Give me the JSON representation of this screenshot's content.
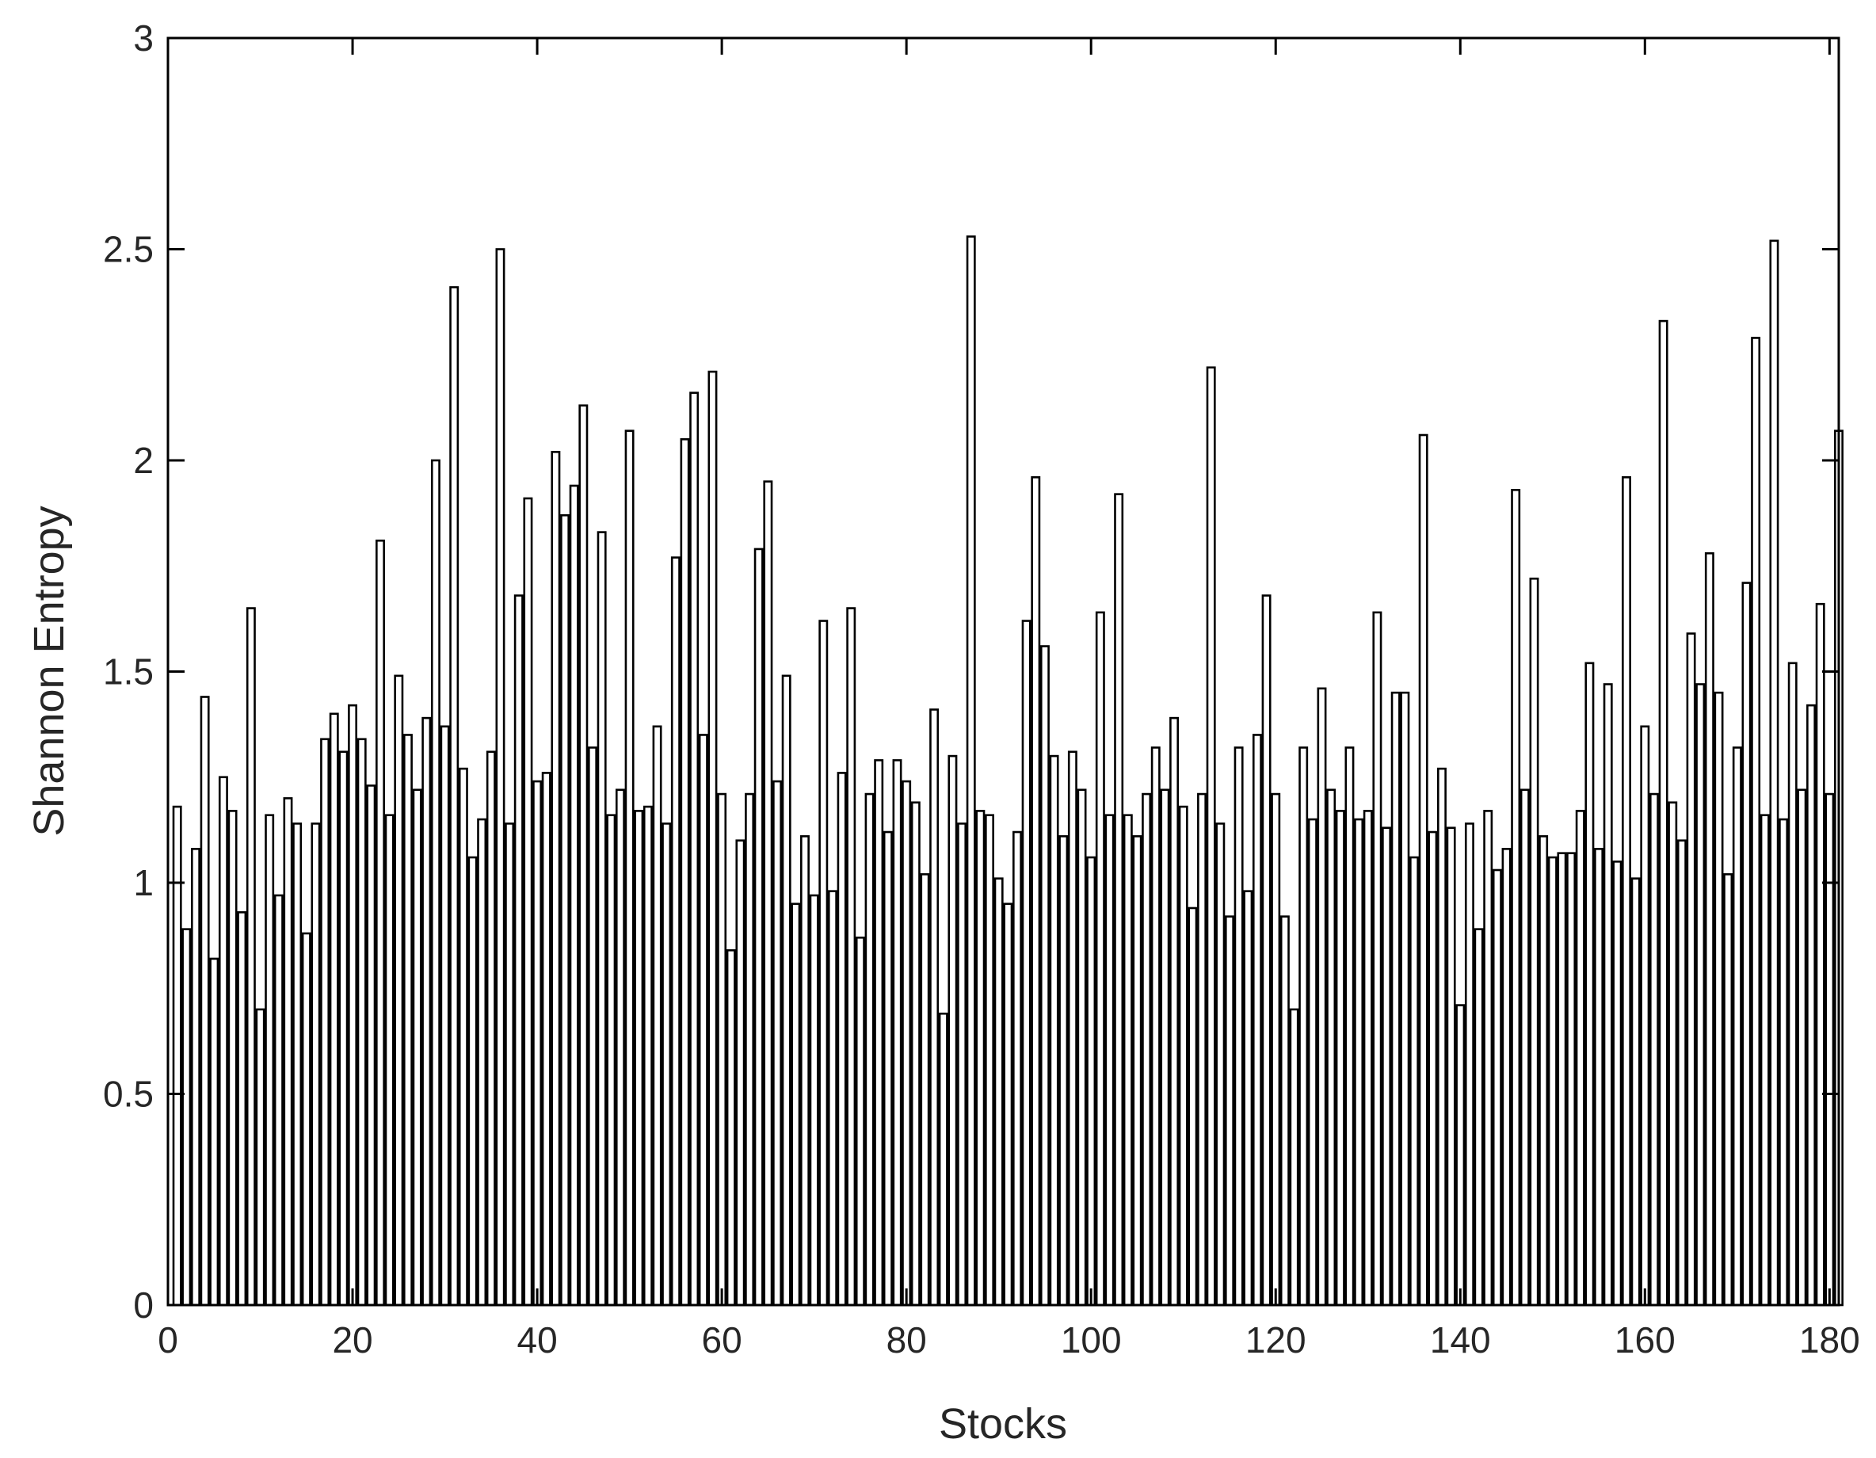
{
  "chart_data": {
    "type": "bar",
    "title": "",
    "xlabel": "Stocks",
    "ylabel": "Shannon Entropy",
    "xlim": [
      0,
      181
    ],
    "ylim": [
      0,
      3
    ],
    "xticks": [
      0,
      20,
      40,
      60,
      80,
      100,
      120,
      140,
      160,
      180
    ],
    "yticks": [
      0,
      0.5,
      1,
      1.5,
      2,
      2.5,
      3
    ],
    "ytick_labels": [
      "0",
      "0.5",
      "1",
      "1.5",
      "2",
      "2.5",
      "3"
    ],
    "grid": false,
    "box": true,
    "bar_fill": "#ffffff",
    "bar_edge": "#000000",
    "x": [
      1,
      2,
      3,
      4,
      5,
      6,
      7,
      8,
      9,
      10,
      11,
      12,
      13,
      14,
      15,
      16,
      17,
      18,
      19,
      20,
      21,
      22,
      23,
      24,
      25,
      26,
      27,
      28,
      29,
      30,
      31,
      32,
      33,
      34,
      35,
      36,
      37,
      38,
      39,
      40,
      41,
      42,
      43,
      44,
      45,
      46,
      47,
      48,
      49,
      50,
      51,
      52,
      53,
      54,
      55,
      56,
      57,
      58,
      59,
      60,
      61,
      62,
      63,
      64,
      65,
      66,
      67,
      68,
      69,
      70,
      71,
      72,
      73,
      74,
      75,
      76,
      77,
      78,
      79,
      80,
      81,
      82,
      83,
      84,
      85,
      86,
      87,
      88,
      89,
      90,
      91,
      92,
      93,
      94,
      95,
      96,
      97,
      98,
      99,
      100,
      101,
      102,
      103,
      104,
      105,
      106,
      107,
      108,
      109,
      110,
      111,
      112,
      113,
      114,
      115,
      116,
      117,
      118,
      119,
      120,
      121,
      122,
      123,
      124,
      125,
      126,
      127,
      128,
      129,
      130,
      131,
      132,
      133,
      134,
      135,
      136,
      137,
      138,
      139,
      140,
      141,
      142,
      143,
      144,
      145,
      146,
      147,
      148,
      149,
      150,
      151,
      152,
      153,
      154,
      155,
      156,
      157,
      158,
      159,
      160,
      161,
      162,
      163,
      164,
      165,
      166,
      167,
      168,
      169,
      170,
      171,
      172,
      173,
      174,
      175,
      176,
      177,
      178,
      179,
      180,
      181
    ],
    "values": [
      1.18,
      0.89,
      1.08,
      1.44,
      0.82,
      1.25,
      1.17,
      0.93,
      1.65,
      0.7,
      1.16,
      0.97,
      1.2,
      1.14,
      0.88,
      1.14,
      1.34,
      1.4,
      1.31,
      1.42,
      1.34,
      1.23,
      1.81,
      1.16,
      1.49,
      1.35,
      1.22,
      1.39,
      2.0,
      1.37,
      2.41,
      1.27,
      1.06,
      1.15,
      1.31,
      2.5,
      1.14,
      1.68,
      1.91,
      1.24,
      1.26,
      2.02,
      1.87,
      1.94,
      2.13,
      1.32,
      1.83,
      1.16,
      1.22,
      2.07,
      1.17,
      1.18,
      1.37,
      1.14,
      1.77,
      2.05,
      2.16,
      1.35,
      2.21,
      1.21,
      0.84,
      1.1,
      1.21,
      1.79,
      1.95,
      1.24,
      1.49,
      0.95,
      1.11,
      0.97,
      1.62,
      0.98,
      1.26,
      1.65,
      0.87,
      1.21,
      1.29,
      1.12,
      1.29,
      1.24,
      1.19,
      1.02,
      1.41,
      0.69,
      1.3,
      1.14,
      2.53,
      1.17,
      1.16,
      1.01,
      0.95,
      1.12,
      1.62,
      1.96,
      1.56,
      1.3,
      1.11,
      1.31,
      1.22,
      1.06,
      1.64,
      1.16,
      1.92,
      1.16,
      1.11,
      1.21,
      1.32,
      1.22,
      1.39,
      1.18,
      0.94,
      1.21,
      2.22,
      1.14,
      0.92,
      1.32,
      0.98,
      1.35,
      1.68,
      1.21,
      0.92,
      0.7,
      1.32,
      1.15,
      1.46,
      1.22,
      1.17,
      1.32,
      1.15,
      1.17,
      1.64,
      1.13,
      1.45,
      1.45,
      1.06,
      2.06,
      1.12,
      1.27,
      1.13,
      0.71,
      1.14,
      0.89,
      1.17,
      1.03,
      1.08,
      1.93,
      1.22,
      1.72,
      1.11,
      1.06,
      1.07,
      1.07,
      1.17,
      1.52,
      1.08,
      1.47,
      1.05,
      1.96,
      1.01,
      1.37,
      1.21,
      2.33,
      1.19,
      1.1,
      1.59,
      1.47,
      1.78,
      1.45,
      1.02,
      1.32,
      1.71,
      2.29,
      1.16,
      2.52,
      1.15,
      1.52,
      1.22,
      1.42,
      1.66,
      1.21,
      2.07
    ]
  }
}
